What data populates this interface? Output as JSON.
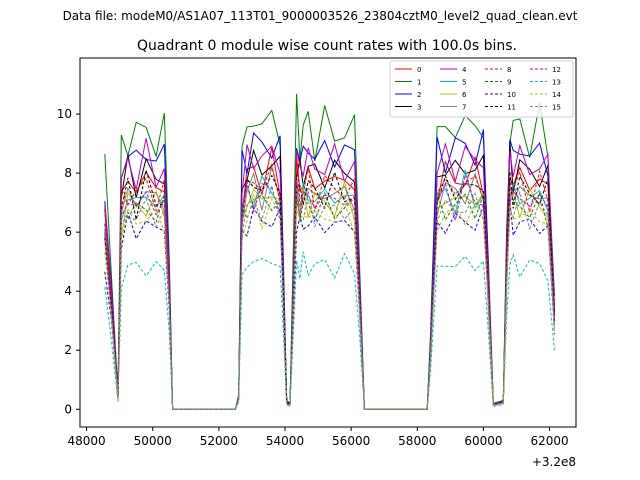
{
  "chart_data": {
    "type": "line",
    "suptitle": "Data file: modeM0/AS1A07_113T01_9000003526_23804cztM0_level2_quad_clean.evt",
    "title": "Quadrant 0 module wise count rates with 100.0s bins.",
    "xlabel": "",
    "ylabel": "",
    "x_offset_label": "+3.2e8",
    "xlim": [
      47800,
      62800
    ],
    "ylim": [
      -0.6,
      11.9
    ],
    "xticks": [
      48000,
      50000,
      52000,
      54000,
      56000,
      58000,
      60000,
      62000
    ],
    "xtick_labels": [
      "48000",
      "50000",
      "52000",
      "54000",
      "56000",
      "58000",
      "60000",
      "62000"
    ],
    "yticks": [
      0,
      2,
      4,
      6,
      8,
      10
    ],
    "ytick_labels": [
      "0",
      "2",
      "4",
      "6",
      "8",
      "10"
    ],
    "legend_loc": "upper right",
    "template_x": [
      48550,
      48750,
      48950,
      49050,
      49250,
      49500,
      49800,
      50100,
      50350,
      50500,
      50600,
      52500,
      52600,
      52700,
      52850,
      53050,
      53300,
      53600,
      53850,
      53950,
      54050,
      54150,
      54350,
      54450,
      54550,
      54700,
      54900,
      55200,
      55500,
      55800,
      56100,
      56250,
      56400,
      58300,
      58400,
      58600,
      58850,
      59150,
      59450,
      59750,
      60000,
      60150,
      60300,
      60600,
      60700,
      60800,
      60900,
      61100,
      61400,
      61700,
      61950,
      62150
    ],
    "template_y": [
      0.78,
      0.45,
      0.05,
      0.85,
      0.94,
      0.9,
      0.95,
      0.9,
      0.92,
      0.5,
      0.0,
      0.0,
      0.05,
      0.86,
      0.94,
      0.97,
      0.95,
      0.98,
      0.93,
      0.5,
      0.03,
      0.02,
      0.98,
      0.9,
      0.94,
      0.95,
      0.92,
      0.94,
      0.93,
      0.94,
      0.92,
      0.5,
      0.0,
      0.0,
      0.25,
      0.92,
      0.95,
      0.93,
      0.97,
      0.94,
      0.95,
      0.5,
      0.02,
      0.03,
      0.6,
      0.97,
      0.93,
      0.95,
      0.92,
      0.94,
      0.9,
      0.38
    ],
    "series": [
      {
        "name": "0",
        "color": "#ff0000",
        "dash": "solid",
        "level": 8.3
      },
      {
        "name": "1",
        "color": "#008000",
        "dash": "solid",
        "level": 10.1
      },
      {
        "name": "2",
        "color": "#0000ff",
        "dash": "solid",
        "level": 9.3
      },
      {
        "name": "3",
        "color": "#000000",
        "dash": "solid",
        "level": 8.6
      },
      {
        "name": "4",
        "color": "#bf00bf",
        "dash": "solid",
        "level": 8.9
      },
      {
        "name": "5",
        "color": "#00bfbf",
        "dash": "solid",
        "level": 7.7
      },
      {
        "name": "6",
        "color": "#bfbf00",
        "dash": "solid",
        "level": 7.5
      },
      {
        "name": "7",
        "color": "#808080",
        "dash": "solid",
        "level": 7.8
      },
      {
        "name": "8",
        "color": "#ff0000",
        "dash": "dashed",
        "level": 8.0
      },
      {
        "name": "9",
        "color": "#008000",
        "dash": "dashed",
        "level": 7.3
      },
      {
        "name": "10",
        "color": "#0000ff",
        "dash": "dashed",
        "level": 6.7
      },
      {
        "name": "11",
        "color": "#000000",
        "dash": "dashed",
        "level": 7.9
      },
      {
        "name": "12",
        "color": "#bf00bf",
        "dash": "dashed",
        "level": 7.6
      },
      {
        "name": "13",
        "color": "#00bfbf",
        "dash": "dashed",
        "level": 5.2
      },
      {
        "name": "14",
        "color": "#bfbf00",
        "dash": "dashed",
        "level": 7.0
      },
      {
        "name": "15",
        "color": "#808080",
        "dash": "dashed",
        "level": 7.2
      }
    ]
  }
}
